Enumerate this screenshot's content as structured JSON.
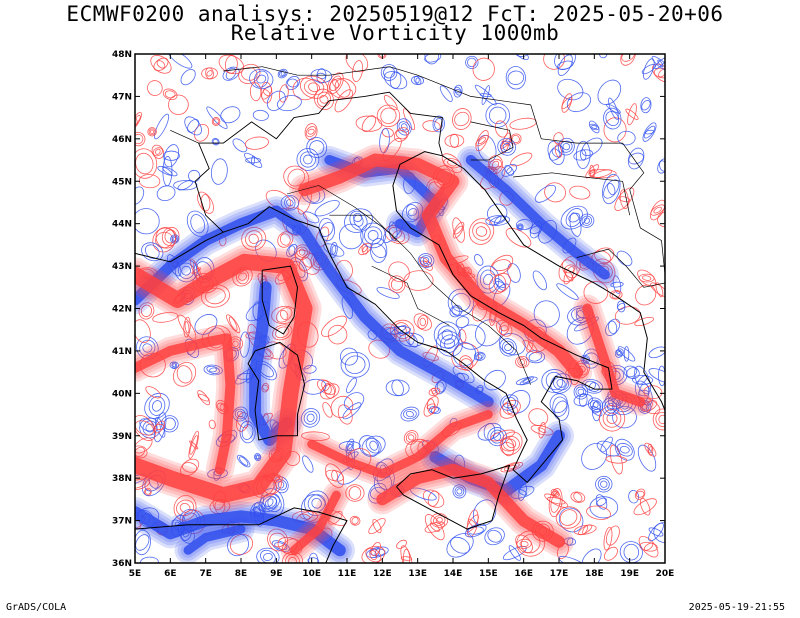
{
  "header": {
    "title": "ECMWF0200 analisys: 20250519@12 FcT: 2025-05-20+06",
    "subtitle": "Relative Vorticity 1000mb"
  },
  "map": {
    "lon_range": [
      5,
      20
    ],
    "lat_range": [
      36,
      48
    ],
    "lon_ticks": [
      "5E",
      "6E",
      "7E",
      "8E",
      "9E",
      "10E",
      "11E",
      "12E",
      "13E",
      "14E",
      "15E",
      "16E",
      "17E",
      "18E",
      "19E",
      "20E"
    ],
    "lat_ticks": [
      "36N",
      "37N",
      "38N",
      "39N",
      "40N",
      "41N",
      "42N",
      "43N",
      "44N",
      "45N",
      "46N",
      "47N",
      "48N"
    ],
    "colors": {
      "positive": "#ff4040",
      "negative": "#3050f0",
      "coast": "#000000",
      "background": "#ffffff"
    }
  },
  "footer": {
    "credit": "GrADS/COLA",
    "timestamp": "2025-05-19-21:55"
  }
}
